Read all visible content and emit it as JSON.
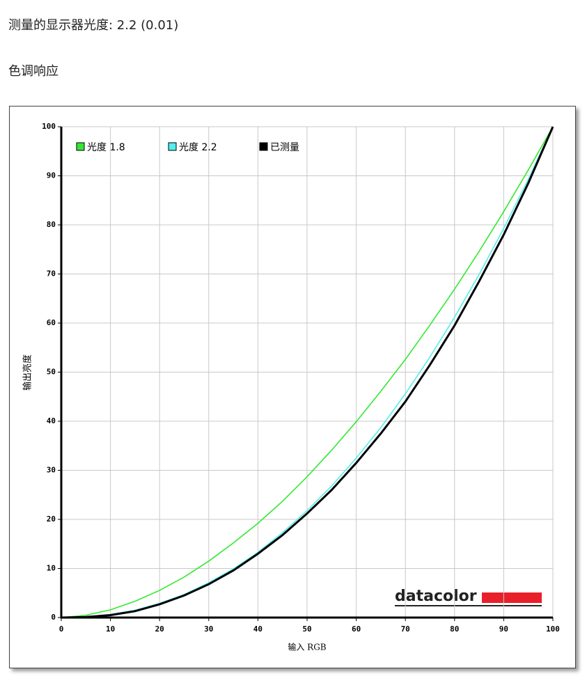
{
  "header": {
    "gamma_line": "测量的显示器光度: 2.2 (0.01)",
    "section": "色调响应"
  },
  "chart_data": {
    "type": "line",
    "xlabel": "输入 RGB",
    "ylabel": "输出亮度",
    "logo": "datacolor",
    "x": [
      0,
      5,
      10,
      15,
      20,
      25,
      30,
      35,
      40,
      45,
      50,
      55,
      60,
      65,
      70,
      75,
      80,
      85,
      90,
      95,
      100
    ],
    "series": [
      {
        "name": "光度 1.8",
        "color": "#33e833",
        "values": [
          0,
          0.46,
          1.58,
          3.32,
          5.54,
          8.25,
          11.5,
          15.2,
          19.2,
          23.7,
          28.7,
          34.1,
          39.9,
          46.1,
          52.6,
          59.6,
          66.9,
          74.6,
          82.7,
          91.2,
          100
        ]
      },
      {
        "name": "光度 2.2",
        "color": "#55eeee",
        "values": [
          0,
          0.14,
          0.63,
          1.5,
          2.9,
          4.7,
          7.1,
          9.9,
          13.3,
          17.3,
          21.8,
          26.8,
          32.5,
          38.7,
          45.6,
          53.1,
          61.2,
          69.9,
          79.3,
          89.3,
          100
        ]
      },
      {
        "name": "已测量",
        "color": "#000000",
        "values": [
          0,
          0.1,
          0.5,
          1.3,
          2.7,
          4.5,
          6.8,
          9.6,
          13,
          16.8,
          21.2,
          26,
          31.5,
          37.5,
          44,
          51.5,
          59.5,
          68.5,
          78,
          88.5,
          100
        ]
      }
    ],
    "xlim": [
      0,
      100
    ],
    "xticks": [
      0,
      10,
      20,
      30,
      40,
      50,
      60,
      70,
      80,
      90,
      100
    ],
    "ylim": [
      0,
      100
    ],
    "yticks": [
      0,
      10,
      20,
      30,
      40,
      50,
      60,
      70,
      80,
      90,
      100
    ],
    "grid": true,
    "legend": "top-left"
  }
}
